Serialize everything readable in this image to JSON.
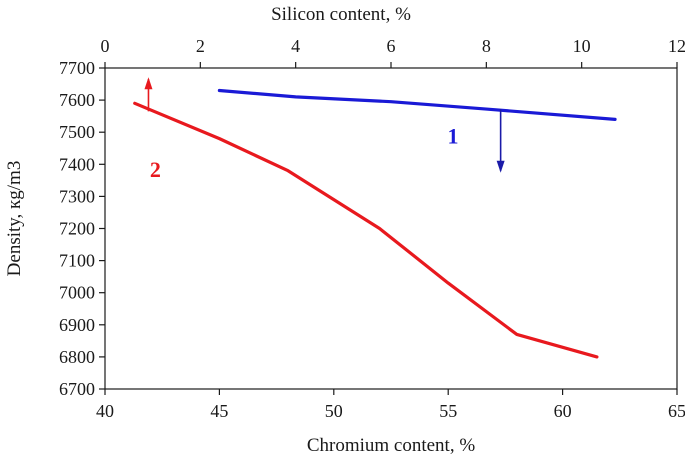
{
  "chart_data": {
    "type": "line",
    "title": "",
    "xlabel": "Chromium content, %",
    "x2label": "Silicon content, %",
    "ylabel": "Density, кg/m3",
    "xlim": [
      40,
      65
    ],
    "x2lim": [
      0,
      12
    ],
    "ylim": [
      6700,
      7700
    ],
    "x_ticks": [
      40,
      45,
      50,
      55,
      60,
      65
    ],
    "x2_ticks": [
      0,
      2,
      4,
      6,
      8,
      10,
      12
    ],
    "y_ticks": [
      6700,
      6800,
      6900,
      7000,
      7100,
      7200,
      7300,
      7400,
      7500,
      7600,
      7700
    ],
    "grid": false,
    "series": [
      {
        "name": "1",
        "color": "#1a1ad6",
        "axis": "top",
        "x": [
          2.4,
          4.0,
          6.0,
          8.0,
          10.7
        ],
        "y": [
          7630,
          7610,
          7595,
          7572,
          7540
        ],
        "arrow": {
          "x": 8.3,
          "y_from": 7572,
          "y_to": 7380,
          "direction": "down",
          "color": "#1a1aa8"
        },
        "label_pos": {
          "x": 7.3,
          "y": 7465
        }
      },
      {
        "name": "2",
        "color": "#e8191e",
        "axis": "bottom",
        "x": [
          41.3,
          45,
          48,
          50,
          52,
          55,
          58,
          61.5
        ],
        "y": [
          7590,
          7480,
          7380,
          7290,
          7200,
          7030,
          6870,
          6800
        ],
        "arrow": {
          "x": 41.9,
          "y_from": 7565,
          "y_to": 7665,
          "direction": "up",
          "color": "#e8191e"
        },
        "label_pos": {
          "x": 42.2,
          "y": 7360
        }
      }
    ]
  },
  "colors": {
    "axis": "#1a1a1a",
    "background": "#ffffff"
  }
}
